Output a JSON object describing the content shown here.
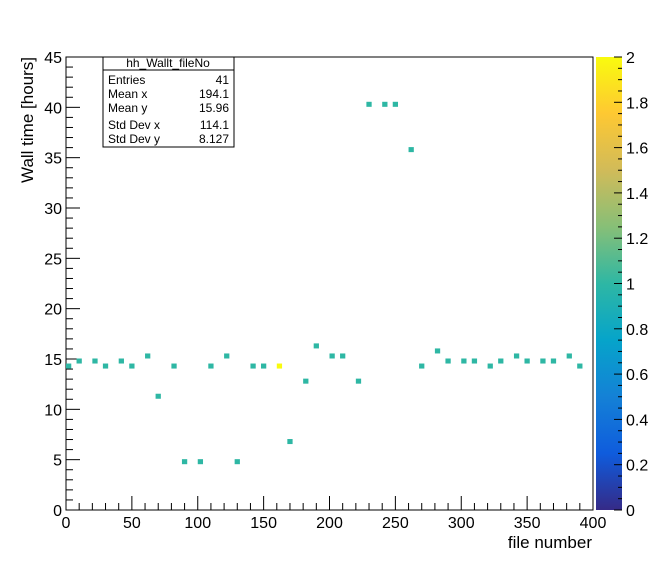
{
  "chart_data": {
    "type": "heatmap",
    "title": "",
    "xlabel": "file number",
    "ylabel": "Wall time [hours]",
    "xlim": [
      0,
      400
    ],
    "ylim": [
      0,
      45
    ],
    "x_ticks": [
      "0",
      "50",
      "100",
      "150",
      "200",
      "250",
      "300",
      "350",
      "400"
    ],
    "y_ticks": [
      "0",
      "5",
      "10",
      "15",
      "20",
      "25",
      "30",
      "35",
      "40",
      "45"
    ],
    "grid": false,
    "stats_box": {
      "title": "hh_Wallt_fileNo",
      "rows": [
        {
          "label": "Entries",
          "value": "41"
        },
        {
          "label": "Mean x",
          "value": "194.1"
        },
        {
          "label": "Mean y",
          "value": "15.96"
        },
        {
          "label": "Std Dev x",
          "value": "114.1"
        },
        {
          "label": "Std Dev y",
          "value": "8.127"
        }
      ]
    },
    "colorbar": {
      "range": [
        0,
        2
      ],
      "ticks": [
        "0",
        "0.2",
        "0.4",
        "0.6",
        "0.8",
        "1",
        "1.2",
        "1.4",
        "1.6",
        "1.8",
        "2"
      ],
      "palette": [
        "#352a87",
        "#0f5cdd",
        "#1481d6",
        "#06a4ca",
        "#2eb7a4",
        "#87bf77",
        "#d1bb59",
        "#fec832",
        "#f9fb0e"
      ]
    },
    "points": [
      {
        "x": 2,
        "y": 14.3,
        "z": 1
      },
      {
        "x": 10,
        "y": 14.8,
        "z": 1
      },
      {
        "x": 22,
        "y": 14.8,
        "z": 1
      },
      {
        "x": 30,
        "y": 14.3,
        "z": 1
      },
      {
        "x": 42,
        "y": 14.8,
        "z": 1
      },
      {
        "x": 50,
        "y": 14.3,
        "z": 1
      },
      {
        "x": 62,
        "y": 15.3,
        "z": 1
      },
      {
        "x": 70,
        "y": 11.3,
        "z": 1
      },
      {
        "x": 82,
        "y": 14.3,
        "z": 1
      },
      {
        "x": 90,
        "y": 4.8,
        "z": 1
      },
      {
        "x": 102,
        "y": 4.8,
        "z": 1
      },
      {
        "x": 110,
        "y": 14.3,
        "z": 1
      },
      {
        "x": 122,
        "y": 15.3,
        "z": 1
      },
      {
        "x": 130,
        "y": 4.8,
        "z": 1
      },
      {
        "x": 142,
        "y": 14.3,
        "z": 1
      },
      {
        "x": 150,
        "y": 14.3,
        "z": 1
      },
      {
        "x": 162,
        "y": 14.3,
        "z": 2
      },
      {
        "x": 170,
        "y": 6.8,
        "z": 1
      },
      {
        "x": 182,
        "y": 12.8,
        "z": 1
      },
      {
        "x": 190,
        "y": 16.3,
        "z": 1
      },
      {
        "x": 202,
        "y": 15.3,
        "z": 1
      },
      {
        "x": 210,
        "y": 15.3,
        "z": 1
      },
      {
        "x": 222,
        "y": 12.8,
        "z": 1
      },
      {
        "x": 230,
        "y": 40.3,
        "z": 1
      },
      {
        "x": 242,
        "y": 40.3,
        "z": 1
      },
      {
        "x": 250,
        "y": 40.3,
        "z": 1
      },
      {
        "x": 262,
        "y": 35.8,
        "z": 1
      },
      {
        "x": 270,
        "y": 14.3,
        "z": 1
      },
      {
        "x": 282,
        "y": 15.8,
        "z": 1
      },
      {
        "x": 290,
        "y": 14.8,
        "z": 1
      },
      {
        "x": 302,
        "y": 14.8,
        "z": 1
      },
      {
        "x": 310,
        "y": 14.8,
        "z": 1
      },
      {
        "x": 322,
        "y": 14.3,
        "z": 1
      },
      {
        "x": 330,
        "y": 14.8,
        "z": 1
      },
      {
        "x": 342,
        "y": 15.3,
        "z": 1
      },
      {
        "x": 350,
        "y": 14.8,
        "z": 1
      },
      {
        "x": 362,
        "y": 14.8,
        "z": 1
      },
      {
        "x": 370,
        "y": 14.8,
        "z": 1
      },
      {
        "x": 382,
        "y": 15.3,
        "z": 1
      },
      {
        "x": 390,
        "y": 14.3,
        "z": 1
      }
    ]
  }
}
